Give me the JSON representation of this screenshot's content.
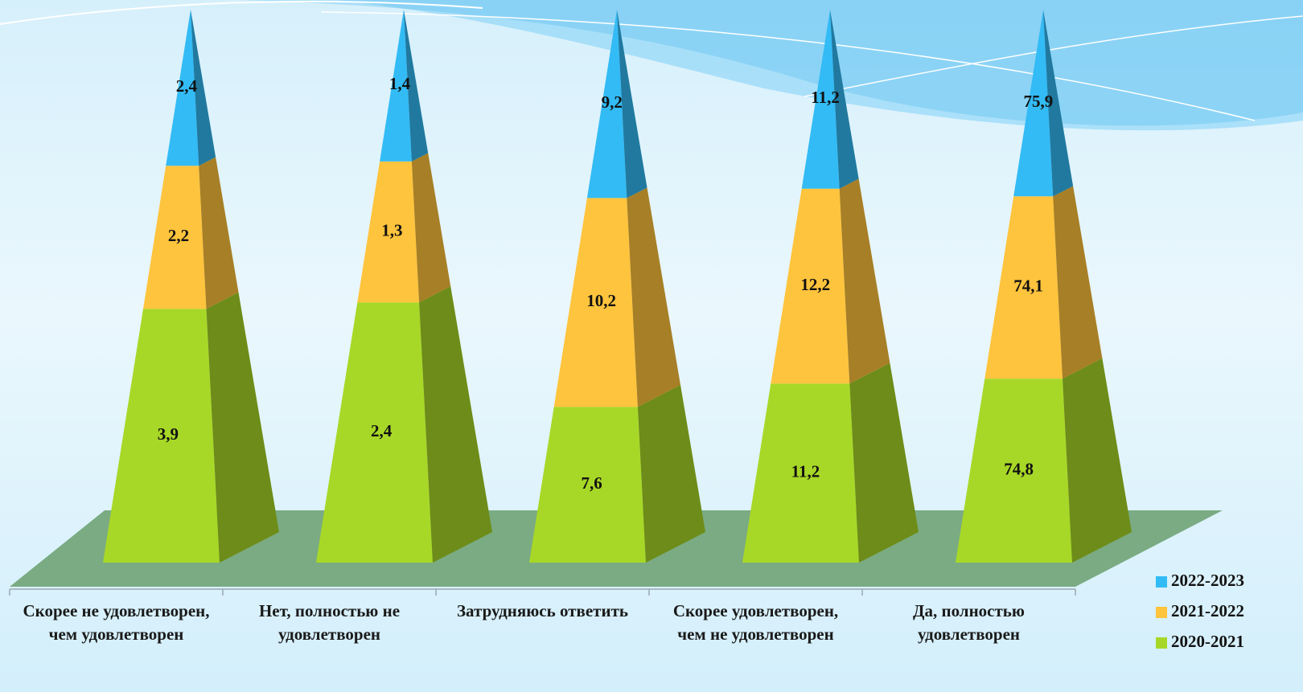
{
  "chart_data": {
    "type": "pyramid-stacked-percent",
    "categories": [
      "Скорее не удовлетворен, чем удовлетворен",
      "Нет, полностью не удовлетворен",
      "Затрудняюсь ответить",
      "Скорее удовлетворен, чем не удовлетворен",
      "Да, полностью удовлетворен"
    ],
    "series": [
      {
        "name": "2020-2021",
        "color": "#a8d827",
        "values": [
          3.9,
          2.4,
          7.6,
          11.2,
          74.8
        ],
        "value_labels": [
          "3,9",
          "2,4",
          "7,6",
          "11,2",
          "74,8"
        ]
      },
      {
        "name": "2021-2022",
        "color": "#ffc43d",
        "values": [
          2.2,
          1.3,
          10.2,
          12.2,
          74.1
        ],
        "value_labels": [
          "2,2",
          "1,3",
          "10,2",
          "12,2",
          "74,1"
        ]
      },
      {
        "name": "2022-2023",
        "color": "#33bbf5",
        "values": [
          2.4,
          1.4,
          9.2,
          11.2,
          75.9
        ],
        "value_labels": [
          "2,4",
          "1,4",
          "9,2",
          "11,2",
          "75,9"
        ]
      }
    ],
    "legend": "bottom-right"
  }
}
